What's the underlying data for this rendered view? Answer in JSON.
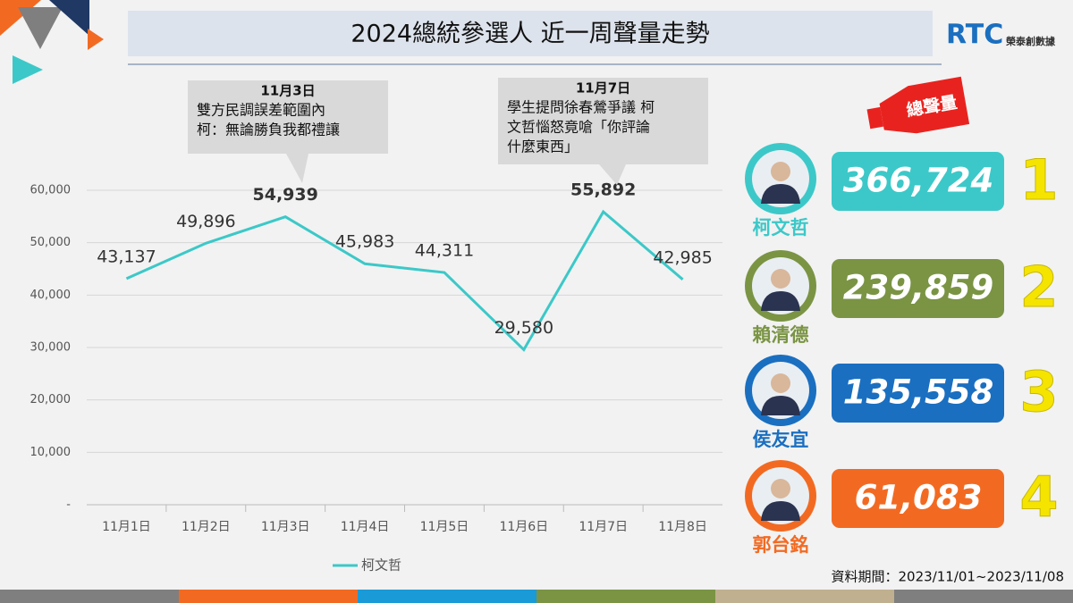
{
  "header": {
    "title": "2024總統參選人  近一周聲量走勢",
    "logo": "RTC",
    "logo_sub": "榮泰創數據"
  },
  "chart_data": {
    "type": "line",
    "categories": [
      "11月1日",
      "11月2日",
      "11月3日",
      "11月4日",
      "11月5日",
      "11月6日",
      "11月7日",
      "11月8日"
    ],
    "series": [
      {
        "name": "柯文哲",
        "color": "#3cc8c8",
        "values": [
          43137,
          49896,
          54939,
          45983,
          44311,
          29580,
          55892,
          42985
        ],
        "value_labels": [
          "43,137",
          "49,896",
          "54,939",
          "45,983",
          "44,311",
          "29,580",
          "55,892",
          "42,985"
        ]
      }
    ],
    "ylim": [
      0,
      60000
    ],
    "yticks": [
      {
        "value": 0,
        "label": "-"
      },
      {
        "value": 10000,
        "label": "10,000"
      },
      {
        "value": 20000,
        "label": "20,000"
      },
      {
        "value": 30000,
        "label": "30,000"
      },
      {
        "value": 40000,
        "label": "40,000"
      },
      {
        "value": 50000,
        "label": "50,000"
      },
      {
        "value": 60000,
        "label": "60,000"
      }
    ],
    "grid": true,
    "legend": "bottom",
    "annotations": [
      {
        "date": "11月3日",
        "lines": [
          "雙方民調誤差範圍內",
          "柯：無論勝負我都禮讓"
        ]
      },
      {
        "date": "11月7日",
        "lines": [
          "學生提問徐春鶯爭議 柯",
          "文哲惱怒竟嗆「你評論",
          "什麼東西」"
        ]
      }
    ]
  },
  "ranking": {
    "title": "總聲量",
    "items": [
      {
        "name": "柯文哲",
        "total": "366,724",
        "rank": "1",
        "color": "#3cc8c8"
      },
      {
        "name": "賴清德",
        "total": "239,859",
        "rank": "2",
        "color": "#7a9444"
      },
      {
        "name": "侯友宜",
        "total": "135,558",
        "rank": "3",
        "color": "#1a6fc0"
      },
      {
        "name": "郭台銘",
        "total": "61,083",
        "rank": "4",
        "color": "#f26a22"
      }
    ]
  },
  "footer": {
    "period": "資料期間：2023/11/01~2023/11/08"
  }
}
